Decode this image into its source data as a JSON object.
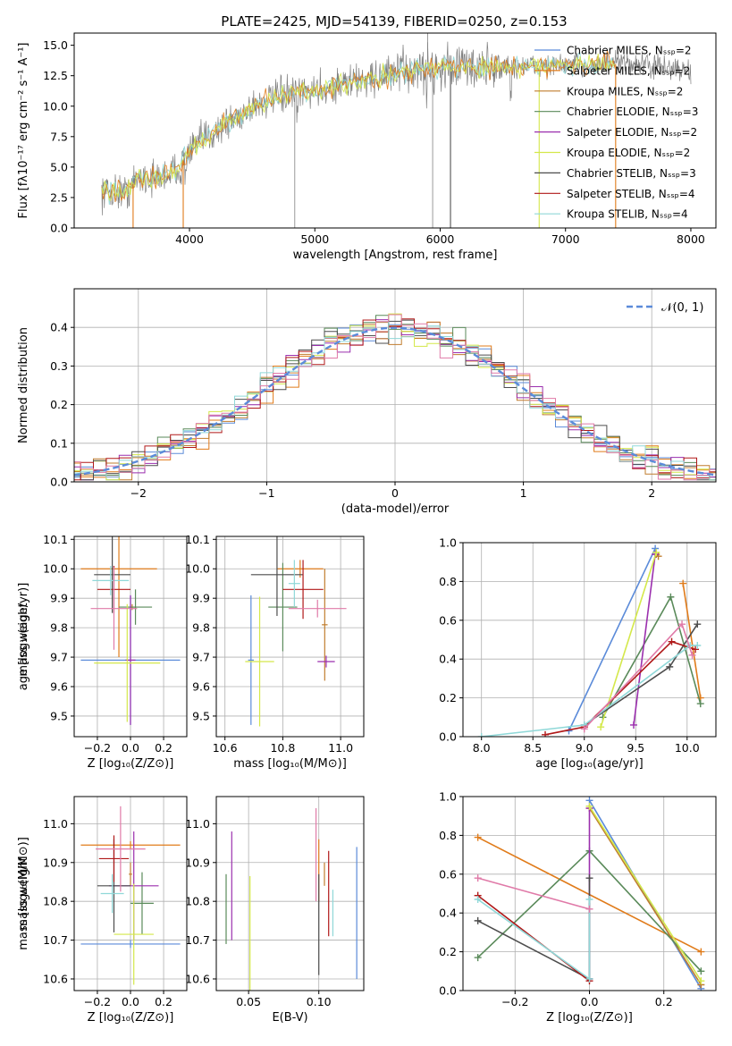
{
  "figure_title": "PLATE=2425, MJD=54139, FIBERID=0250, z=0.153",
  "colors": {
    "Chabrier MILES": "#5b8bd9",
    "Salpeter MILES": "#e07b1a",
    "Kroupa MILES": "#c07d2e",
    "Chabrier ELODIE": "#5a8a5a",
    "Salpeter ELODIE": "#9b2fae",
    "Kroupa ELODIE": "#d4e84a",
    "Chabrier STELIB": "#4d4d4d",
    "Salpeter STELIB": "#b01818",
    "Kroupa STELIB": "#8fd8d8",
    "pink": "#e07aa8",
    "data": "#808080"
  },
  "chart_data": [
    {
      "id": "spectrum",
      "type": "line",
      "xlabel": "wavelength [Angstrom, rest frame]",
      "ylabel": "Flux [fλ10⁻¹⁷ erg cm⁻² s⁻¹ A⁻¹]",
      "xlim": [
        3080,
        8200
      ],
      "ylim": [
        0,
        16
      ],
      "xticks": [
        4000,
        5000,
        6000,
        7000,
        8000
      ],
      "yticks": [
        "0.0",
        "2.5",
        "5.0",
        "7.5",
        "10.0",
        "12.5",
        "15.0"
      ],
      "ytick_values": [
        0,
        2.5,
        5,
        7.5,
        10,
        12.5,
        15
      ],
      "continuum": [
        [
          3300,
          3.0
        ],
        [
          3500,
          3.0
        ],
        [
          3600,
          4.2
        ],
        [
          3700,
          4.0
        ],
        [
          3800,
          4.3
        ],
        [
          3900,
          4.8
        ],
        [
          4000,
          6.3
        ],
        [
          4100,
          7.2
        ],
        [
          4200,
          7.9
        ],
        [
          4300,
          8.6
        ],
        [
          4400,
          9.2
        ],
        [
          4500,
          10.0
        ],
        [
          4700,
          10.7
        ],
        [
          4900,
          11.2
        ],
        [
          5100,
          11.5
        ],
        [
          5300,
          12.0
        ],
        [
          5500,
          12.4
        ],
        [
          5700,
          12.8
        ],
        [
          5900,
          13.1
        ],
        [
          6100,
          13.2
        ],
        [
          6300,
          13.2
        ],
        [
          6500,
          13.2
        ],
        [
          6700,
          13.3
        ],
        [
          6900,
          13.3
        ],
        [
          7100,
          13.4
        ],
        [
          7300,
          13.4
        ],
        [
          7500,
          13.5
        ],
        [
          7700,
          13.3
        ],
        [
          7900,
          13.0
        ],
        [
          8000,
          12.8
        ]
      ],
      "legend": [
        {
          "label": "Chabrier MILES, Nₛₛₚ=2",
          "series": "Chabrier MILES"
        },
        {
          "label": "Salpeter MILES, Nₛₛₚ=2",
          "series": "Salpeter MILES"
        },
        {
          "label": "Kroupa MILES, Nₛₛₚ=2",
          "series": "Kroupa MILES"
        },
        {
          "label": "Chabrier ELODIE, Nₛₛₚ=3",
          "series": "Chabrier ELODIE"
        },
        {
          "label": "Salpeter ELODIE, Nₛₛₚ=2",
          "series": "Salpeter ELODIE"
        },
        {
          "label": "Kroupa ELODIE, Nₛₛₚ=2",
          "series": "Kroupa ELODIE"
        },
        {
          "label": "Chabrier STELIB, Nₛₛₚ=3",
          "series": "Chabrier STELIB"
        },
        {
          "label": "Salpeter STELIB, Nₛₛₚ=4",
          "series": "Salpeter STELIB"
        },
        {
          "label": "Kroupa STELIB, Nₛₛₚ=4",
          "series": "Kroupa STELIB"
        }
      ]
    },
    {
      "id": "residuals",
      "type": "line",
      "xlabel": "(data-model)/error",
      "ylabel": "Normed distribution",
      "xlim": [
        -2.5,
        2.5
      ],
      "ylim": [
        0,
        0.5
      ],
      "xticks": [
        -2,
        -1,
        0,
        1,
        2
      ],
      "xtick_labels": [
        "−2",
        "−1",
        "0",
        "1",
        "2"
      ],
      "yticks": [
        "0.0",
        "0.1",
        "0.2",
        "0.3",
        "0.4"
      ],
      "ytick_values": [
        0,
        0.1,
        0.2,
        0.3,
        0.4
      ],
      "legend_label": "𝒩(0, 1)",
      "bin_width": 0.1
    },
    {
      "id": "age_vs_Z",
      "type": "scatter",
      "xlabel": "Z [log₁₀(Z/Z⊙)]",
      "ylabel": "age  [log₁₀(age/yr)]",
      "xlim": [
        -0.34,
        0.34
      ],
      "ylim": [
        9.43,
        10.11
      ],
      "xticks": [
        -0.2,
        0.0,
        0.2
      ],
      "xtick_labels": [
        "−0.2",
        "0.0",
        "0.2"
      ],
      "yticks": [
        9.5,
        9.6,
        9.7,
        9.8,
        9.9,
        10.0,
        10.1
      ],
      "points": [
        {
          "series": "Chabrier MILES",
          "x": 0.0,
          "xerr": 0.3,
          "y": 9.69,
          "yerr": 0.22
        },
        {
          "series": "Salpeter MILES",
          "x": -0.07,
          "xerr": 0.23,
          "y": 10.0,
          "yerr": 0.3
        },
        {
          "series": "Kroupa MILES",
          "x": 0.01,
          "xerr": 0.02,
          "y": 9.87,
          "yerr": 0.01
        },
        {
          "series": "Chabrier ELODIE",
          "x": 0.03,
          "xerr": 0.1,
          "y": 9.87,
          "yerr": 0.06
        },
        {
          "series": "Salpeter ELODIE",
          "x": 0.0,
          "xerr": 0.03,
          "y": 9.69,
          "yerr": 0.22
        },
        {
          "series": "Kroupa ELODIE",
          "x": -0.02,
          "xerr": 0.2,
          "y": 9.68,
          "yerr": 0.2
        },
        {
          "series": "Chabrier STELIB",
          "x": -0.11,
          "xerr": 0.11,
          "y": 9.98,
          "yerr": 0.13
        },
        {
          "series": "Salpeter STELIB",
          "x": -0.1,
          "xerr": 0.1,
          "y": 9.93,
          "yerr": 0.08
        },
        {
          "series": "Kroupa STELIB",
          "x": -0.12,
          "xerr": 0.11,
          "y": 9.96,
          "yerr": 0.05
        },
        {
          "series": "pink",
          "x": -0.1,
          "xerr": 0.14,
          "y": 9.865,
          "yerr": 0.14
        }
      ]
    },
    {
      "id": "age_vs_mass",
      "type": "scatter",
      "xlabel": "mass [log₁₀(M/M⊙)]",
      "ylabel": "",
      "xlim": [
        10.57,
        11.08
      ],
      "ylim": [
        9.43,
        10.11
      ],
      "xticks": [
        10.6,
        10.8,
        11.0
      ],
      "xtick_labels": [
        "10.6",
        "10.8",
        "11.0"
      ],
      "yticks": [
        9.5,
        9.6,
        9.7,
        9.8,
        9.9,
        10.0,
        10.1
      ],
      "points": [
        {
          "series": "Chabrier MILES",
          "x": 10.69,
          "xerr": 0.01,
          "y": 9.69,
          "yerr": 0.22
        },
        {
          "series": "Salpeter MILES",
          "x": 10.86,
          "xerr": 0.08,
          "y": 10.0,
          "yerr": 0.03
        },
        {
          "series": "Kroupa MILES",
          "x": 10.945,
          "xerr": 0.01,
          "y": 9.81,
          "yerr": 0.19
        },
        {
          "series": "Chabrier ELODIE",
          "x": 10.8,
          "xerr": 0.05,
          "y": 9.87,
          "yerr": 0.15
        },
        {
          "series": "Salpeter ELODIE",
          "x": 10.95,
          "xerr": 0.03,
          "y": 9.685,
          "yerr": 0.02
        },
        {
          "series": "Kroupa ELODIE",
          "x": 10.72,
          "xerr": 0.05,
          "y": 9.685,
          "yerr": 0.22
        },
        {
          "series": "Chabrier STELIB",
          "x": 10.78,
          "xerr": 0.09,
          "y": 9.98,
          "yerr": 0.14
        },
        {
          "series": "Salpeter STELIB",
          "x": 10.87,
          "xerr": 0.07,
          "y": 9.93,
          "yerr": 0.1
        },
        {
          "series": "Kroupa STELIB",
          "x": 10.84,
          "xerr": 0.02,
          "y": 9.95,
          "yerr": 0.08
        },
        {
          "series": "pink",
          "x": 10.92,
          "xerr": 0.1,
          "y": 9.865,
          "yerr": 0.03
        }
      ]
    },
    {
      "id": "massweight_vs_age",
      "type": "line",
      "xlabel": "age  [log₁₀(age/yr)]",
      "ylabel": "mass weight",
      "xlim": [
        7.82,
        10.28
      ],
      "ylim": [
        0,
        1
      ],
      "xticks": [
        8.0,
        8.5,
        9.0,
        9.5,
        10.0
      ],
      "xtick_labels": [
        "8.0",
        "8.5",
        "9.0",
        "9.5",
        "10.0"
      ],
      "yticks": [
        "0.0",
        "0.2",
        "0.4",
        "0.6",
        "0.8",
        "1.0"
      ],
      "ytick_values": [
        0,
        0.2,
        0.4,
        0.6,
        0.8,
        1.0
      ],
      "series": [
        {
          "series": "Chabrier MILES",
          "x": [
            8.85,
            9.69
          ],
          "y": [
            0.03,
            0.97
          ]
        },
        {
          "series": "Salpeter MILES",
          "x": [
            9.96,
            10.13
          ],
          "y": [
            0.79,
            0.2
          ]
        },
        {
          "series": "Kroupa MILES",
          "x": [
            9.7,
            9.72
          ],
          "y": [
            0.94,
            0.93
          ]
        },
        {
          "series": "Chabrier ELODIE",
          "x": [
            9.18,
            9.84,
            10.13
          ],
          "y": [
            0.1,
            0.72,
            0.17
          ]
        },
        {
          "series": "Salpeter ELODIE",
          "x": [
            9.48,
            9.69
          ],
          "y": [
            0.06,
            0.94
          ]
        },
        {
          "series": "Kroupa ELODIE",
          "x": [
            9.16,
            9.7
          ],
          "y": [
            0.05,
            0.95
          ]
        },
        {
          "series": "Chabrier STELIB",
          "x": [
            9.0,
            9.83,
            10.1
          ],
          "y": [
            0.06,
            0.36,
            0.58
          ]
        },
        {
          "series": "Salpeter STELIB",
          "x": [
            8.62,
            9.0,
            9.85,
            10.08
          ],
          "y": [
            0.01,
            0.05,
            0.49,
            0.45
          ]
        },
        {
          "series": "Kroupa STELIB",
          "x": [
            8.0,
            9.0,
            10.03,
            10.1
          ],
          "y": [
            0.0,
            0.06,
            0.47,
            0.47
          ]
        },
        {
          "series": "pink",
          "x": [
            9.0,
            9.95,
            10.05
          ],
          "y": [
            0.04,
            0.58,
            0.42
          ]
        }
      ]
    },
    {
      "id": "mass_vs_Z",
      "type": "scatter",
      "xlabel": "Z [log₁₀(Z/Z⊙)]",
      "ylabel": "mass [log₁₀(M/M⊙)]",
      "xlim": [
        -0.34,
        0.34
      ],
      "ylim": [
        10.57,
        11.07
      ],
      "xticks": [
        -0.2,
        0.0,
        0.2
      ],
      "xtick_labels": [
        "−0.2",
        "0.0",
        "0.2"
      ],
      "yticks": [
        10.6,
        10.7,
        10.8,
        10.9,
        11.0
      ],
      "points": [
        {
          "series": "Chabrier MILES",
          "x": 0.0,
          "xerr": 0.3,
          "y": 10.69,
          "yerr": 0.01
        },
        {
          "series": "Salpeter MILES",
          "x": 0.0,
          "xerr": 0.3,
          "y": 10.945,
          "yerr": 0.01
        },
        {
          "series": "Kroupa MILES",
          "x": 0.0,
          "xerr": 0.01,
          "y": 10.87,
          "yerr": 0.03
        },
        {
          "series": "Chabrier ELODIE",
          "x": 0.07,
          "xerr": 0.07,
          "y": 10.795,
          "yerr": 0.08
        },
        {
          "series": "Salpeter ELODIE",
          "x": 0.02,
          "xerr": 0.15,
          "y": 10.84,
          "yerr": 0.14
        },
        {
          "series": "Kroupa ELODIE",
          "x": 0.02,
          "xerr": 0.12,
          "y": 10.715,
          "yerr": 0.13
        },
        {
          "series": "Chabrier STELIB",
          "x": -0.1,
          "xerr": 0.1,
          "y": 10.84,
          "yerr": 0.12
        },
        {
          "series": "Salpeter STELIB",
          "x": -0.1,
          "xerr": 0.09,
          "y": 10.91,
          "yerr": 0.06
        },
        {
          "series": "Kroupa STELIB",
          "x": -0.11,
          "xerr": 0.07,
          "y": 10.82,
          "yerr": 0.05
        },
        {
          "series": "pink",
          "x": -0.06,
          "xerr": 0.15,
          "y": 10.935,
          "yerr": 0.11
        }
      ]
    },
    {
      "id": "mass_vs_EBV",
      "type": "scatter",
      "xlabel": "E(B-V)",
      "ylabel": "",
      "xlim": [
        0.027,
        0.132
      ],
      "ylim": [
        10.57,
        11.07
      ],
      "xticks": [
        0.05,
        0.1
      ],
      "xtick_labels": [
        "0.05",
        "0.10"
      ],
      "yticks": [
        10.6,
        10.7,
        10.8,
        10.9,
        11.0
      ],
      "points": [
        {
          "series": "Chabrier MILES",
          "x": 0.127,
          "xerr": 0,
          "y": 10.77,
          "yerr": 0.17
        },
        {
          "series": "Salpeter MILES",
          "x": 0.1,
          "xerr": 0,
          "y": 10.88,
          "yerr": 0.08
        },
        {
          "series": "Kroupa MILES",
          "x": 0.104,
          "xerr": 0,
          "y": 10.87,
          "yerr": 0.03
        },
        {
          "series": "Chabrier ELODIE",
          "x": 0.034,
          "xerr": 0,
          "y": 10.78,
          "yerr": 0.09
        },
        {
          "series": "Salpeter ELODIE",
          "x": 0.038,
          "xerr": 0,
          "y": 10.84,
          "yerr": 0.14
        },
        {
          "series": "Kroupa ELODIE",
          "x": 0.051,
          "xerr": 0,
          "y": 10.715,
          "yerr": 0.15
        },
        {
          "series": "Chabrier STELIB",
          "x": 0.1,
          "xerr": 0,
          "y": 10.74,
          "yerr": 0.13
        },
        {
          "series": "Salpeter STELIB",
          "x": 0.107,
          "xerr": 0,
          "y": 10.82,
          "yerr": 0.11
        },
        {
          "series": "Kroupa STELIB",
          "x": 0.11,
          "xerr": 0,
          "y": 10.77,
          "yerr": 0.06
        },
        {
          "series": "pink",
          "x": 0.098,
          "xerr": 0,
          "y": 10.92,
          "yerr": 0.12
        }
      ]
    },
    {
      "id": "massweight_vs_Z",
      "type": "line",
      "xlabel": "Z [log₁₀(Z/Z⊙)]",
      "ylabel": "mass weight",
      "xlim": [
        -0.34,
        0.34
      ],
      "ylim": [
        0,
        1
      ],
      "xticks": [
        -0.2,
        0.0,
        0.2
      ],
      "xtick_labels": [
        "−0.2",
        "0.0",
        "0.2"
      ],
      "yticks": [
        "0.0",
        "0.2",
        "0.4",
        "0.6",
        "0.8",
        "1.0"
      ],
      "ytick_values": [
        0,
        0.2,
        0.4,
        0.6,
        0.8,
        1.0
      ],
      "series": [
        {
          "series": "Chabrier MILES",
          "x": [
            0.0,
            0.3
          ],
          "y": [
            0.98,
            0.01
          ]
        },
        {
          "series": "Salpeter MILES",
          "x": [
            -0.3,
            0.3
          ],
          "y": [
            0.79,
            0.2
          ]
        },
        {
          "series": "Kroupa MILES",
          "x": [
            0.0,
            0.3
          ],
          "y": [
            0.94,
            0.03
          ]
        },
        {
          "series": "Chabrier ELODIE",
          "x": [
            -0.3,
            0.0,
            0.3
          ],
          "y": [
            0.17,
            0.72,
            0.1
          ]
        },
        {
          "series": "Salpeter ELODIE",
          "x": [
            0.0,
            0.0
          ],
          "y": [
            0.94,
            0.06
          ]
        },
        {
          "series": "Kroupa ELODIE",
          "x": [
            0.0,
            0.3
          ],
          "y": [
            0.95,
            0.05
          ]
        },
        {
          "series": "Chabrier STELIB",
          "x": [
            -0.3,
            0.0,
            0.0
          ],
          "y": [
            0.36,
            0.06,
            0.58
          ]
        },
        {
          "series": "Salpeter STELIB",
          "x": [
            -0.3,
            0.0
          ],
          "y": [
            0.49,
            0.05
          ]
        },
        {
          "series": "Kroupa STELIB",
          "x": [
            -0.3,
            0.0,
            0.0
          ],
          "y": [
            0.47,
            0.06,
            0.47
          ]
        },
        {
          "series": "pink",
          "x": [
            -0.3,
            0.0
          ],
          "y": [
            0.58,
            0.42
          ]
        }
      ]
    }
  ]
}
